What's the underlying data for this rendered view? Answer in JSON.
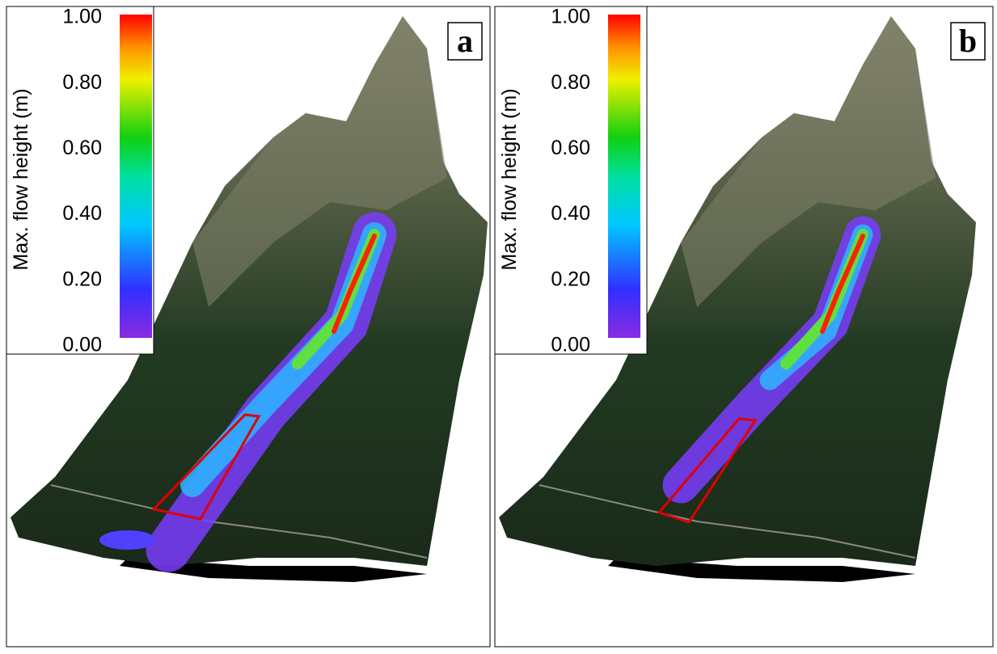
{
  "panels": [
    {
      "label": "a",
      "colorbar": {
        "title": "Max. flow height (m)",
        "lim": [
          0,
          1
        ],
        "ticks": [
          {
            "value": 0,
            "label": "0.00"
          },
          {
            "value": 0.2,
            "label": "0.20"
          },
          {
            "value": 0.4,
            "label": "0.40"
          },
          {
            "value": 0.6,
            "label": "0.60"
          },
          {
            "value": 0.8,
            "label": "0.80"
          },
          {
            "value": 1,
            "label": "1.00"
          }
        ]
      }
    },
    {
      "label": "b",
      "colorbar": {
        "title": "Max. flow height (m)",
        "lim": [
          0,
          1
        ],
        "ticks": [
          {
            "value": 0,
            "label": "0.00"
          },
          {
            "value": 0.2,
            "label": "0.20"
          },
          {
            "value": 0.4,
            "label": "0.40"
          },
          {
            "value": 0.6,
            "label": "0.60"
          },
          {
            "value": 0.8,
            "label": "0.80"
          },
          {
            "value": 1,
            "label": "1.00"
          }
        ]
      }
    }
  ]
}
